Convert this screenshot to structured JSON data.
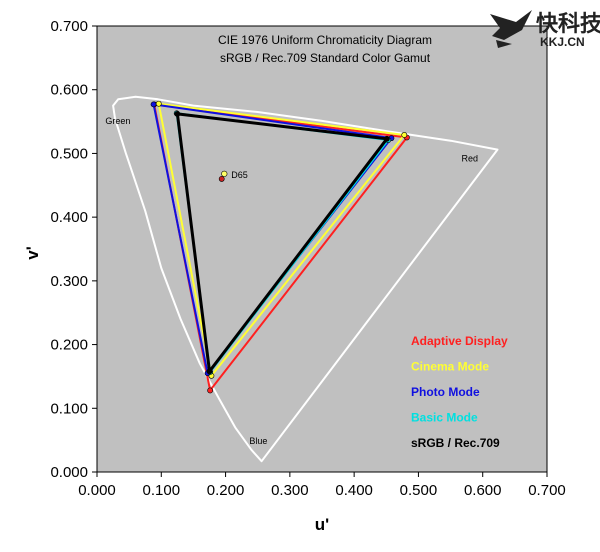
{
  "watermark": {
    "brand": "快科技",
    "url": "KKJ.CN"
  },
  "chart_data": {
    "type": "scatter",
    "title": "CIE 1976 Uniform Chromaticity Diagram",
    "subtitle": "sRGB / Rec.709 Standard Color Gamut",
    "xlabel": "u'",
    "ylabel": "v'",
    "xlim": [
      0,
      0.7
    ],
    "ylim": [
      0,
      0.7
    ],
    "x_ticks": [
      "0.000",
      "0.100",
      "0.200",
      "0.300",
      "0.400",
      "0.500",
      "0.600",
      "0.700"
    ],
    "y_ticks": [
      "0.000",
      "0.100",
      "0.200",
      "0.300",
      "0.400",
      "0.500",
      "0.600",
      "0.700"
    ],
    "grid": false,
    "plot_background": "#c0c0c0",
    "locus_color": "#ffffff",
    "spectral_locus": [
      [
        0.256,
        0.017
      ],
      [
        0.24,
        0.035
      ],
      [
        0.215,
        0.07
      ],
      [
        0.19,
        0.115
      ],
      [
        0.16,
        0.17
      ],
      [
        0.13,
        0.24
      ],
      [
        0.1,
        0.32
      ],
      [
        0.075,
        0.41
      ],
      [
        0.045,
        0.5
      ],
      [
        0.028,
        0.555
      ],
      [
        0.025,
        0.575
      ],
      [
        0.033,
        0.585
      ],
      [
        0.06,
        0.589
      ],
      [
        0.095,
        0.585
      ],
      [
        0.15,
        0.575
      ],
      [
        0.25,
        0.565
      ],
      [
        0.35,
        0.551
      ],
      [
        0.45,
        0.535
      ],
      [
        0.55,
        0.52
      ],
      [
        0.623,
        0.506
      ]
    ],
    "region_labels": [
      {
        "text": "Green",
        "x": 0.013,
        "y": 0.546
      },
      {
        "text": "Red",
        "x": 0.567,
        "y": 0.487
      },
      {
        "text": "Blue",
        "x": 0.237,
        "y": 0.044
      }
    ],
    "white_point": {
      "label": "D65",
      "x": 0.198,
      "y": 0.468,
      "color": "#ffff66",
      "secondary": {
        "x": 0.194,
        "y": 0.46,
        "color": "#cc2222"
      }
    },
    "series": [
      {
        "name": "Adaptive Display",
        "color": "#ff2020",
        "triangle": [
          [
            0.089,
            0.577
          ],
          [
            0.482,
            0.525
          ],
          [
            0.176,
            0.128
          ]
        ]
      },
      {
        "name": "Cinema Mode",
        "color": "#ffff33",
        "triangle": [
          [
            0.096,
            0.578
          ],
          [
            0.478,
            0.529
          ],
          [
            0.178,
            0.151
          ]
        ]
      },
      {
        "name": "Photo Mode",
        "color": "#1010e0",
        "triangle": [
          [
            0.088,
            0.577
          ],
          [
            0.458,
            0.524
          ],
          [
            0.172,
            0.155
          ]
        ]
      },
      {
        "name": "Basic Mode",
        "color": "#00e0e0",
        "triangle": [
          [
            0.124,
            0.563
          ],
          [
            0.453,
            0.521
          ],
          [
            0.176,
            0.157
          ]
        ]
      },
      {
        "name": "sRGB / Rec.709",
        "color": "#000000",
        "triangle": [
          [
            0.125,
            0.562
          ],
          [
            0.451,
            0.523
          ],
          [
            0.175,
            0.158
          ]
        ]
      }
    ],
    "legend_position": "lower-right"
  }
}
